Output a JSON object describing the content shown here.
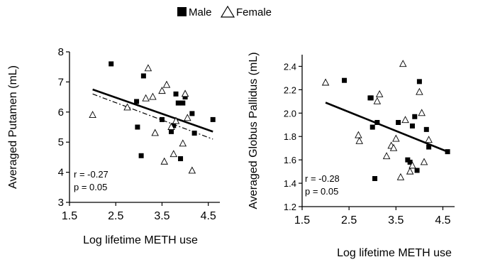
{
  "legend": {
    "placement": "top-center",
    "entries": [
      {
        "name": "Male",
        "marker": "filled-square",
        "color": "#000000"
      },
      {
        "name": "Female",
        "marker": "open-triangle",
        "color": "#000000"
      }
    ]
  },
  "chart_data": [
    {
      "type": "scatter",
      "title": "",
      "xlabel": "Log lifetime METH use",
      "ylabel": "Averaged Putamen (mL)",
      "xlim": [
        1.5,
        4.75
      ],
      "ylim": [
        3,
        8
      ],
      "xticks": [
        1.5,
        2.5,
        3.5,
        4.5
      ],
      "yticks": [
        3,
        4,
        5,
        6,
        7,
        8
      ],
      "grid": false,
      "annotations": [
        "r  = -0.27",
        "p = 0.05"
      ],
      "series": [
        {
          "name": "Male",
          "marker": "square",
          "x": [
            2.4,
            2.95,
            2.97,
            3.05,
            3.1,
            3.5,
            3.7,
            3.75,
            3.8,
            3.85,
            3.9,
            3.95,
            4.0,
            4.15,
            4.2,
            4.6
          ],
          "y": [
            7.6,
            6.35,
            5.5,
            4.55,
            7.2,
            5.75,
            5.35,
            5.55,
            6.6,
            6.3,
            4.45,
            6.3,
            6.5,
            5.95,
            5.3,
            5.75
          ]
        },
        {
          "name": "Female",
          "marker": "triangle",
          "x": [
            2.0,
            2.75,
            3.15,
            3.2,
            3.3,
            3.35,
            3.5,
            3.55,
            3.6,
            3.7,
            3.75,
            3.8,
            3.95,
            4.0,
            4.05,
            4.15
          ],
          "y": [
            5.9,
            6.15,
            6.45,
            7.45,
            6.5,
            5.3,
            6.7,
            4.35,
            6.9,
            5.5,
            4.6,
            5.7,
            4.95,
            6.6,
            5.8,
            4.05
          ]
        }
      ],
      "fit_lines": [
        {
          "style": "solid",
          "x": [
            2.0,
            4.6
          ],
          "y": [
            6.75,
            5.35
          ]
        },
        {
          "style": "dash-dot",
          "x": [
            2.0,
            4.6
          ],
          "y": [
            6.6,
            5.1
          ]
        }
      ]
    },
    {
      "type": "scatter",
      "title": "",
      "xlabel": "Log lifetime METH use",
      "ylabel": "Averaged Globus Pallidus (mL)",
      "xlim": [
        1.5,
        4.75
      ],
      "ylim": [
        1.2,
        2.5
      ],
      "xticks": [
        1.5,
        2.5,
        3.5,
        4.5
      ],
      "yticks": [
        1.2,
        1.4,
        1.6,
        1.8,
        2.0,
        2.2,
        2.4
      ],
      "grid": false,
      "annotations": [
        "r  = -0.28",
        "p = 0.05"
      ],
      "series": [
        {
          "name": "Male",
          "marker": "square",
          "x": [
            2.4,
            2.95,
            2.97,
            3.0,
            3.05,
            3.1,
            3.55,
            3.75,
            3.8,
            3.85,
            3.9,
            3.95,
            4.0,
            4.15,
            4.2,
            4.6
          ],
          "y": [
            2.28,
            2.13,
            2.13,
            1.88,
            1.44,
            1.92,
            1.92,
            1.6,
            1.58,
            1.89,
            1.97,
            1.51,
            2.27,
            1.86,
            1.71,
            1.67
          ]
        },
        {
          "name": "Female",
          "marker": "triangle",
          "x": [
            2.0,
            2.7,
            2.72,
            3.1,
            3.15,
            3.3,
            3.4,
            3.45,
            3.5,
            3.6,
            3.65,
            3.7,
            3.8,
            3.85,
            4.0,
            4.05,
            4.1,
            4.2
          ],
          "y": [
            2.26,
            1.81,
            1.76,
            2.1,
            2.16,
            1.63,
            1.72,
            1.7,
            1.78,
            1.45,
            2.42,
            1.94,
            1.5,
            1.55,
            2.18,
            2.0,
            1.58,
            1.77
          ]
        }
      ],
      "fit_lines": [
        {
          "style": "solid",
          "x": [
            2.0,
            4.6
          ],
          "y": [
            2.09,
            1.67
          ]
        }
      ]
    }
  ]
}
